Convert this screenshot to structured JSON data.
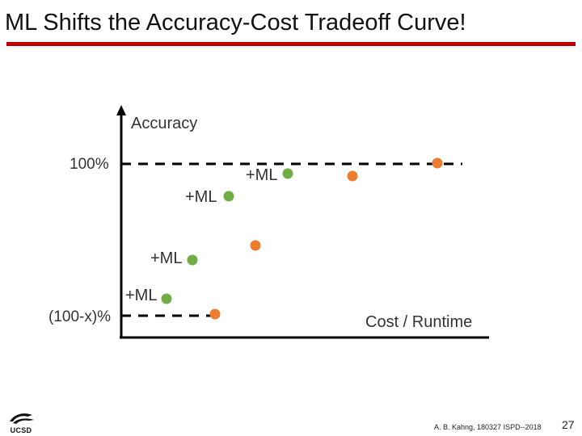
{
  "slide": {
    "title": "ML Shifts the Accuracy-Cost Tradeoff Curve!",
    "footer": "A. B. Kahng, 180327 ISPD--2018",
    "page_number": "27",
    "logo_text": "UCSD"
  },
  "diagram": {
    "y_axis_label": "Accuracy",
    "x_axis_label": "Cost / Runtime",
    "level_top_label": "100%",
    "level_bottom_label": "(100-x)%",
    "ml_label": "+ML",
    "colors": {
      "baseline_point": "#ed7d31",
      "ml_point": "#70ad47",
      "axis": "#000000",
      "title_rule": "#c00000"
    }
  }
}
